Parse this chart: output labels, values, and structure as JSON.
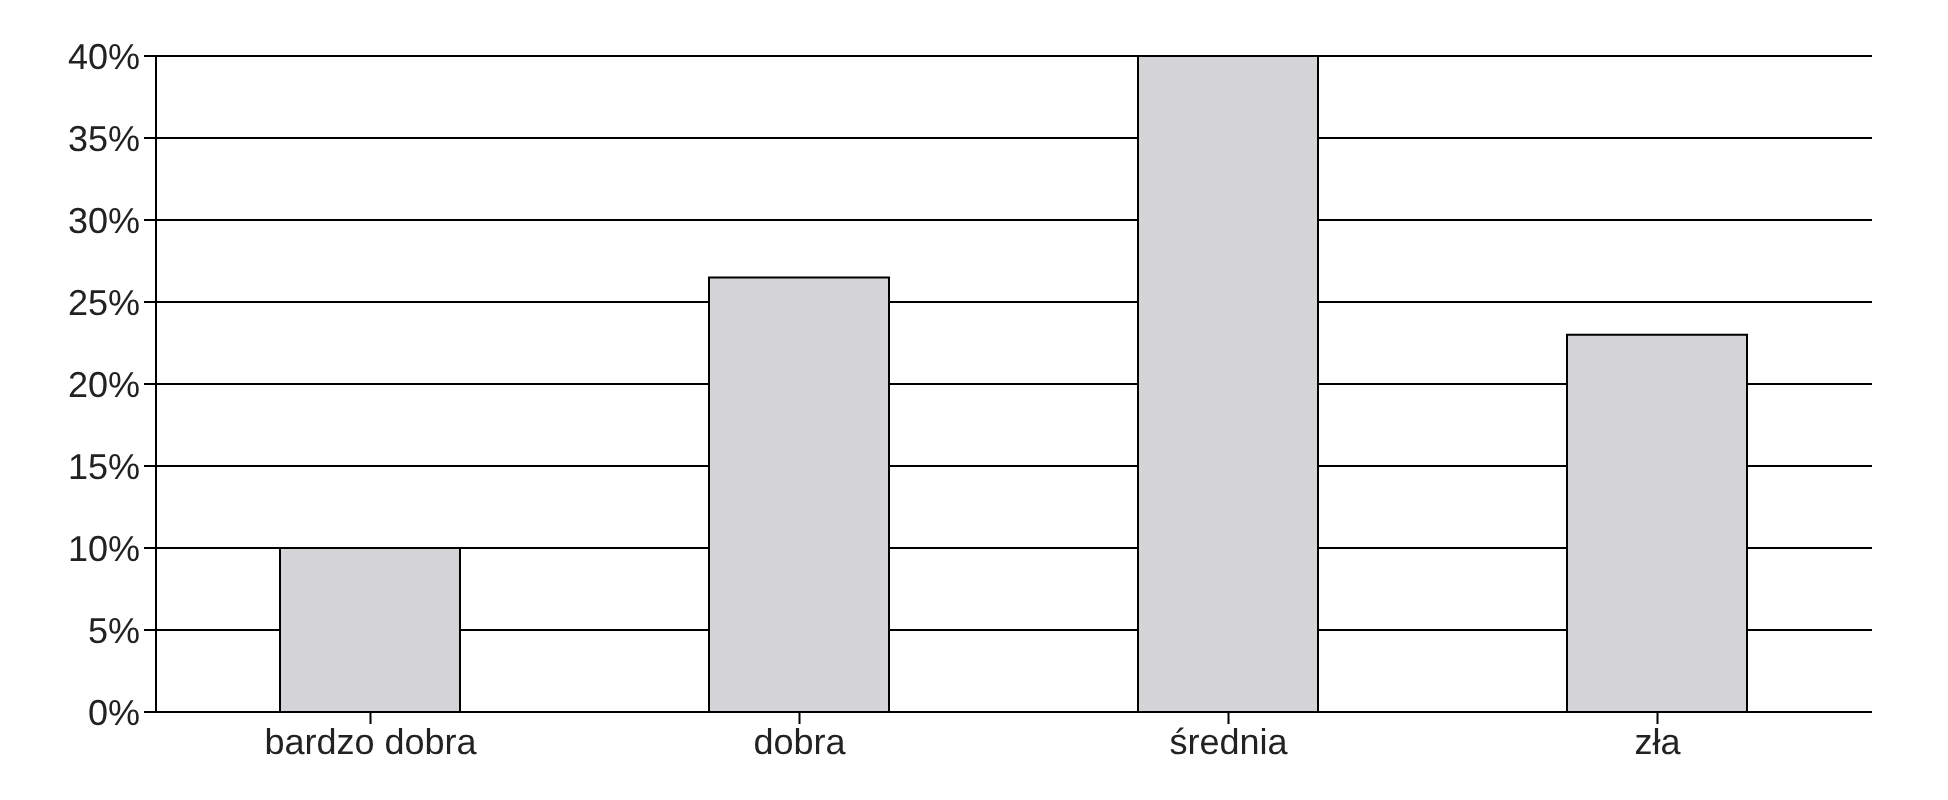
{
  "chart_data": {
    "type": "bar",
    "categories": [
      "bardzo dobra",
      "dobra",
      "średnia",
      "zła"
    ],
    "values": [
      10,
      26.5,
      40,
      23
    ],
    "color": "#d4d4d6",
    "ylim": [
      0,
      40
    ],
    "yticks": [
      {
        "value": 0,
        "label": "0%"
      },
      {
        "value": 5,
        "label": "5%"
      },
      {
        "value": 10,
        "label": "10%"
      },
      {
        "value": 15,
        "label": "15%"
      },
      {
        "value": 20,
        "label": "20%"
      },
      {
        "value": 25,
        "label": "25%"
      },
      {
        "value": 30,
        "label": "30%"
      },
      {
        "value": 35,
        "label": "35%"
      },
      {
        "value": 40,
        "label": "40%"
      }
    ],
    "grid": "y"
  }
}
